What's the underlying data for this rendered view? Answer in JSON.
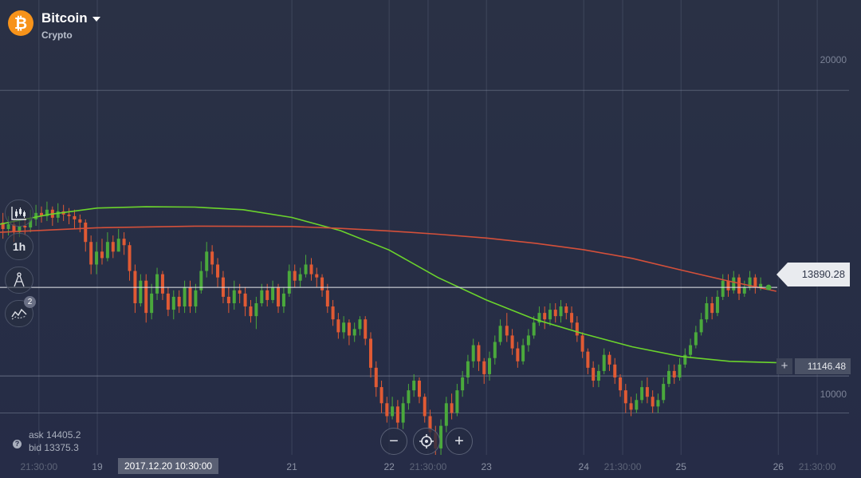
{
  "asset": {
    "name": "Bitcoin",
    "category": "Crypto",
    "logo_symbol": "₿",
    "logo_color": "#f7931a"
  },
  "toolbar": {
    "chart_type_icon": "candlestick-chart-icon",
    "timeframe_label": "1h",
    "drawing_icon": "drawing-tools-icon",
    "indicators_icon": "indicators-icon",
    "indicators_badge": "2"
  },
  "price": {
    "current": "13890.28",
    "current_value": 13890.28,
    "level": "11146.48",
    "level_value": 11146.48,
    "level_plus": "+"
  },
  "quote": {
    "ask_label": "ask",
    "ask_value": "14405.2",
    "bid_label": "bid",
    "bid_value": "13375.3",
    "help_icon": "?"
  },
  "zoom": {
    "zoom_out": "−",
    "center_icon": "crosshair-icon",
    "zoom_in": "+"
  },
  "time_cursor": "2017.12.20 10:30:00",
  "colors": {
    "up": "#4aa93c",
    "down": "#e05a34",
    "ma_fast": "#6bd42c",
    "ma_slow": "#d4503a",
    "current_line": "#e9ebef"
  },
  "chart_data": {
    "type": "candlestick",
    "title": "Bitcoin",
    "y_ticks": [
      10000,
      20000
    ],
    "y_tick_labels": [
      "10000",
      "20000"
    ],
    "ylim": [
      8700,
      22800
    ],
    "x_labels": [
      "21:30:00",
      "19",
      "21",
      "22",
      "21:30:00",
      "23",
      "24",
      "21:30:00",
      "25",
      "26",
      "21:30:00"
    ],
    "x_positions_days": [
      18.4,
      19.0,
      21.0,
      22.0,
      22.4,
      23.0,
      24.0,
      24.4,
      25.0,
      26.0,
      26.4
    ],
    "x_range_days": [
      18.0,
      26.85
    ],
    "grid": true,
    "series": [
      {
        "name": "",
        "kind": "candles",
        "x_start_day": 18.03,
        "x_step_day": 0.0566,
        "points": [
          [
            15900,
            15700,
            16200,
            15400
          ],
          [
            15700,
            15850,
            16100,
            15500
          ],
          [
            15850,
            15600,
            16000,
            15300
          ],
          [
            15600,
            15800,
            15950,
            15450
          ],
          [
            15800,
            15750,
            16050,
            15500
          ],
          [
            15750,
            16000,
            16300,
            15600
          ],
          [
            16000,
            16200,
            16450,
            15800
          ],
          [
            16200,
            16100,
            16400,
            15900
          ],
          [
            16100,
            16300,
            16550,
            15950
          ],
          [
            16300,
            16050,
            16400,
            15800
          ],
          [
            16050,
            16250,
            16500,
            15900
          ],
          [
            16250,
            16150,
            16450,
            15950
          ],
          [
            16150,
            16100,
            16350,
            15850
          ],
          [
            16100,
            16000,
            16300,
            15700
          ],
          [
            16000,
            15900,
            16150,
            15600
          ],
          [
            15900,
            15300,
            16000,
            15000
          ],
          [
            15300,
            14600,
            15500,
            14300
          ],
          [
            14600,
            15000,
            15300,
            14300
          ],
          [
            15000,
            14800,
            15400,
            14600
          ],
          [
            14800,
            15300,
            15600,
            14700
          ],
          [
            15300,
            15000,
            15500,
            14800
          ],
          [
            15000,
            15400,
            15700,
            15000
          ],
          [
            15400,
            15200,
            15600,
            14900
          ],
          [
            15200,
            14400,
            15300,
            14100
          ],
          [
            14400,
            13400,
            14600,
            13100
          ],
          [
            13400,
            14100,
            14300,
            13300
          ],
          [
            14100,
            13100,
            14300,
            12800
          ],
          [
            13100,
            13700,
            14000,
            12900
          ],
          [
            13700,
            14300,
            14500,
            13500
          ],
          [
            14300,
            13700,
            14400,
            13500
          ],
          [
            13700,
            13200,
            13900,
            13000
          ],
          [
            13200,
            13600,
            13800,
            12900
          ],
          [
            13600,
            13300,
            13800,
            13100
          ],
          [
            13300,
            13900,
            14100,
            13100
          ],
          [
            13900,
            13300,
            14100,
            13100
          ],
          [
            13300,
            13800,
            14000,
            13100
          ],
          [
            13800,
            14400,
            14700,
            13700
          ],
          [
            14400,
            15000,
            15300,
            14200
          ],
          [
            15000,
            14600,
            15200,
            14300
          ],
          [
            14600,
            14200,
            14800,
            13900
          ],
          [
            14200,
            13600,
            14400,
            13400
          ],
          [
            13600,
            13400,
            13900,
            13100
          ],
          [
            13400,
            13800,
            14100,
            13200
          ],
          [
            13800,
            13700,
            14000,
            13400
          ],
          [
            13700,
            13300,
            13900,
            13000
          ],
          [
            13300,
            13000,
            13500,
            12800
          ],
          [
            13000,
            13400,
            13600,
            12600
          ],
          [
            13400,
            13800,
            14000,
            13300
          ],
          [
            13800,
            13500,
            14000,
            13300
          ],
          [
            13500,
            13900,
            14100,
            13400
          ],
          [
            13900,
            13300,
            14000,
            13100
          ],
          [
            13300,
            13700,
            13900,
            13100
          ],
          [
            13700,
            14400,
            14600,
            13600
          ],
          [
            14400,
            14100,
            14600,
            13900
          ],
          [
            14100,
            14300,
            14500,
            13900
          ],
          [
            14300,
            14600,
            14900,
            14200
          ]
        ]
      },
      {
        "name": "",
        "kind": "candles",
        "x_start_day": 21.2,
        "x_step_day": 0.0555,
        "points": [
          [
            14600,
            14300,
            14800,
            14100
          ],
          [
            14300,
            14200,
            14500,
            13900
          ],
          [
            14200,
            13800,
            14300,
            13600
          ],
          [
            13800,
            13300,
            14000,
            13100
          ],
          [
            13300,
            12900,
            13500,
            12700
          ],
          [
            12900,
            12500,
            13100,
            12300
          ],
          [
            12500,
            12800,
            13000,
            12300
          ],
          [
            12800,
            12400,
            12900,
            12100
          ],
          [
            12400,
            12600,
            12800,
            12200
          ],
          [
            12600,
            12900,
            13000,
            12400
          ],
          [
            12900,
            12300,
            13000,
            12100
          ],
          [
            12300,
            11400,
            12500,
            11100
          ],
          [
            11400,
            10800,
            11600,
            10500
          ],
          [
            10800,
            10300,
            11000,
            10000
          ],
          [
            10300,
            9900,
            10500,
            9700
          ],
          [
            9900,
            10200,
            10500,
            9800
          ],
          [
            10200,
            9700,
            10400,
            9500
          ],
          [
            9700,
            10300,
            10500,
            9500
          ],
          [
            10300,
            10700,
            10900,
            10100
          ],
          [
            10700,
            11000,
            11200,
            10500
          ],
          [
            11000,
            10500,
            11100,
            10300
          ],
          [
            10500,
            9900,
            10600,
            9700
          ],
          [
            9900,
            9400,
            10100,
            9200
          ],
          [
            9400,
            8900,
            9600,
            8700
          ],
          [
            8900,
            9600,
            9800,
            8700
          ],
          [
            9600,
            10300,
            10500,
            9400
          ],
          [
            10300,
            10000,
            10600,
            9800
          ],
          [
            10000,
            10700,
            10900,
            9900
          ],
          [
            10700,
            11100,
            11300,
            10500
          ],
          [
            11100,
            11600,
            11800,
            10900
          ],
          [
            11600,
            12100,
            12300,
            11400
          ],
          [
            12100,
            11600,
            12200,
            11300
          ],
          [
            11600,
            11200,
            11700,
            10900
          ],
          [
            11200,
            11700,
            11900,
            11000
          ],
          [
            11700,
            12200,
            12400,
            11500
          ],
          [
            12200,
            12700,
            12900,
            12100
          ]
        ]
      },
      {
        "name": "",
        "kind": "candles",
        "x_start_day": 23.21,
        "x_step_day": 0.0555,
        "points": [
          [
            12700,
            12400,
            13100,
            12200
          ],
          [
            12400,
            12000,
            12600,
            11800
          ],
          [
            12000,
            11600,
            12200,
            11400
          ],
          [
            11600,
            12100,
            12300,
            11500
          ],
          [
            12100,
            12400,
            12600,
            11900
          ],
          [
            12400,
            12800,
            13000,
            12300
          ],
          [
            12800,
            13100,
            13300,
            12700
          ],
          [
            13100,
            12900,
            13300,
            12600
          ],
          [
            12900,
            13200,
            13400,
            12700
          ],
          [
            13200,
            13000,
            13400,
            12800
          ],
          [
            13000,
            13300,
            13500,
            12800
          ],
          [
            13300,
            13100,
            13400,
            12900
          ],
          [
            13100,
            12800,
            13300,
            12600
          ],
          [
            12800,
            12400,
            13000,
            12200
          ],
          [
            12400,
            11900,
            12500,
            11700
          ],
          [
            11900,
            11400,
            12000,
            11200
          ],
          [
            11400,
            11000,
            11600,
            10800
          ],
          [
            11000,
            11300,
            11500,
            10800
          ],
          [
            11300,
            11800,
            12000,
            11200
          ],
          [
            11800,
            11500,
            11900,
            11300
          ],
          [
            11500,
            11100,
            11700,
            10900
          ],
          [
            11100,
            10700,
            11200,
            10500
          ],
          [
            10700,
            10300,
            10900,
            10000
          ],
          [
            10300,
            10100,
            10500,
            9900
          ],
          [
            10100,
            10400,
            10600,
            10000
          ],
          [
            10400,
            10800,
            11000,
            10300
          ],
          [
            10800,
            10500,
            11100,
            10300
          ],
          [
            10500,
            10200,
            10700,
            10000
          ],
          [
            10200,
            10400,
            10600,
            10000
          ],
          [
            10400,
            10900,
            11100,
            10300
          ],
          [
            10900,
            11300,
            11500,
            10800
          ],
          [
            11300,
            11100,
            11500,
            10900
          ],
          [
            11100,
            11500,
            11700,
            11000
          ],
          [
            11500,
            11800,
            12000,
            11400
          ],
          [
            11800,
            12100,
            12300,
            11700
          ],
          [
            12100,
            12500,
            12700,
            12000
          ],
          [
            12500,
            12900,
            13100,
            12400
          ],
          [
            12900,
            13400,
            13600,
            12800
          ],
          [
            13400,
            13100,
            13600,
            12900
          ],
          [
            13100,
            13600,
            13800,
            13000
          ],
          [
            13600,
            14100,
            14300,
            13500
          ],
          [
            14100,
            13800,
            14300,
            13600
          ],
          [
            13800,
            14200,
            14400,
            13700
          ],
          [
            14200,
            13700,
            14300,
            13500
          ],
          [
            13700,
            13900,
            14100,
            13600
          ],
          [
            13900,
            14200,
            14400,
            13800
          ],
          [
            14200,
            13900,
            14300,
            13700
          ],
          [
            13900,
            14000,
            14200,
            13800
          ]
        ]
      },
      {
        "name": "",
        "kind": "line",
        "color_key": "ma_fast",
        "points": [
          [
            18.0,
            15850
          ],
          [
            18.5,
            16150
          ],
          [
            19.0,
            16350
          ],
          [
            19.5,
            16390
          ],
          [
            20.0,
            16380
          ],
          [
            20.5,
            16300
          ],
          [
            21.0,
            16060
          ],
          [
            21.5,
            15650
          ],
          [
            22.0,
            15050
          ],
          [
            22.5,
            14200
          ],
          [
            23.0,
            13500
          ],
          [
            23.5,
            12900
          ],
          [
            24.0,
            12450
          ],
          [
            24.5,
            12050
          ],
          [
            25.0,
            11750
          ],
          [
            25.5,
            11600
          ],
          [
            25.98,
            11560
          ]
        ]
      },
      {
        "name": "",
        "kind": "line",
        "color_key": "ma_slow",
        "points": [
          [
            18.0,
            15600
          ],
          [
            19.0,
            15740
          ],
          [
            20.0,
            15790
          ],
          [
            21.0,
            15780
          ],
          [
            21.5,
            15720
          ],
          [
            22.0,
            15640
          ],
          [
            22.5,
            15540
          ],
          [
            23.0,
            15420
          ],
          [
            23.5,
            15260
          ],
          [
            24.0,
            15060
          ],
          [
            24.5,
            14790
          ],
          [
            25.0,
            14430
          ],
          [
            25.5,
            14080
          ],
          [
            25.98,
            13770
          ]
        ]
      }
    ]
  }
}
